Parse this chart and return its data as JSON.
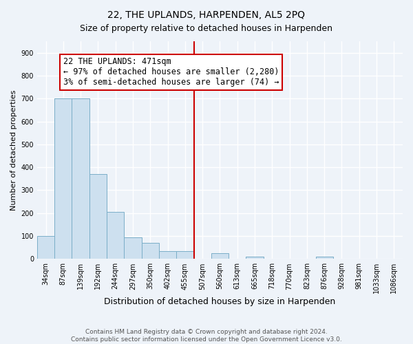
{
  "title": "22, THE UPLANDS, HARPENDEN, AL5 2PQ",
  "subtitle": "Size of property relative to detached houses in Harpenden",
  "xlabel": "Distribution of detached houses by size in Harpenden",
  "ylabel": "Number of detached properties",
  "bar_labels": [
    "34sqm",
    "87sqm",
    "139sqm",
    "192sqm",
    "244sqm",
    "297sqm",
    "350sqm",
    "402sqm",
    "455sqm",
    "507sqm",
    "560sqm",
    "613sqm",
    "665sqm",
    "718sqm",
    "770sqm",
    "823sqm",
    "876sqm",
    "928sqm",
    "981sqm",
    "1033sqm",
    "1086sqm"
  ],
  "bar_values": [
    100,
    700,
    700,
    370,
    205,
    95,
    70,
    35,
    35,
    0,
    25,
    0,
    10,
    0,
    0,
    0,
    10,
    0,
    0,
    0,
    0
  ],
  "bar_color": "#cde0ef",
  "bar_edge_color": "#7aaec8",
  "vline_x_index": 8.5,
  "vline_color": "#cc0000",
  "annotation_line1": "22 THE UPLANDS: 471sqm",
  "annotation_line2": "← 97% of detached houses are smaller (2,280)",
  "annotation_line3": "3% of semi-detached houses are larger (74) →",
  "annotation_box_color": "#ffffff",
  "annotation_box_edge": "#cc0000",
  "ylim": [
    0,
    950
  ],
  "yticks": [
    0,
    100,
    200,
    300,
    400,
    500,
    600,
    700,
    800,
    900
  ],
  "footer_text": "Contains HM Land Registry data © Crown copyright and database right 2024.\nContains public sector information licensed under the Open Government Licence v3.0.",
  "bg_color": "#eef3f9",
  "grid_color": "#ffffff",
  "title_fontsize": 10,
  "subtitle_fontsize": 9,
  "ylabel_fontsize": 8,
  "xlabel_fontsize": 9,
  "tick_fontsize": 7,
  "annotation_fontsize": 8.5,
  "footer_fontsize": 6.5
}
